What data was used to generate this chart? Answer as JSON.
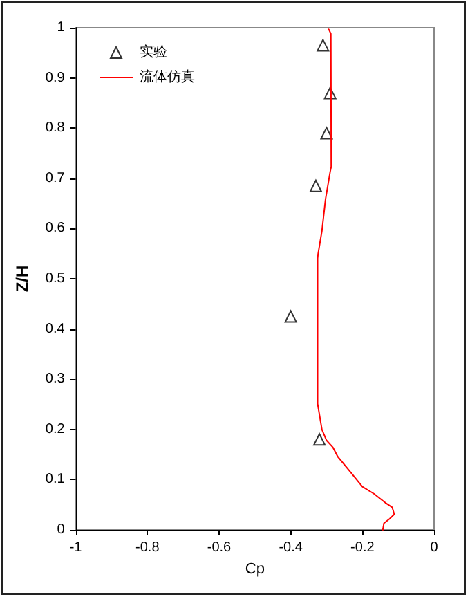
{
  "chart_data": {
    "type": "scatter",
    "xlabel": "Cp",
    "ylabel": "Z/H",
    "series": [
      {
        "name": "实验",
        "marker": "triangle",
        "color": "#000000",
        "x": [
          -0.31,
          -0.29,
          -0.3,
          -0.33,
          -0.4,
          -0.32
        ],
        "values": [
          0.965,
          0.87,
          0.79,
          0.685,
          0.425,
          0.18
        ]
      },
      {
        "name": "流体仿真",
        "type": "line",
        "marker": "none",
        "line_style": "solid",
        "color": "#ff0000",
        "x": [
          -0.294,
          -0.288,
          -0.287,
          -0.29,
          -0.303,
          -0.313,
          -0.324,
          -0.325,
          -0.325,
          -0.313,
          -0.3,
          -0.282,
          -0.269,
          -0.231,
          -0.2,
          -0.168,
          -0.136,
          -0.117,
          -0.111,
          -0.124,
          -0.14,
          -0.143
        ],
        "values": [
          0.997,
          0.988,
          0.723,
          0.713,
          0.658,
          0.595,
          0.548,
          0.54,
          0.251,
          0.2,
          0.178,
          0.164,
          0.146,
          0.113,
          0.086,
          0.072,
          0.054,
          0.045,
          0.031,
          0.022,
          0.013,
          0
        ]
      }
    ],
    "xlim": [
      -1,
      0
    ],
    "xticks": [
      -1,
      -0.8,
      -0.6,
      -0.4,
      -0.2,
      0
    ],
    "ylim": [
      0,
      1
    ],
    "yticks": [
      0,
      0.1,
      0.2,
      0.3,
      0.4,
      0.5,
      0.6,
      0.7,
      0.8,
      0.9,
      1
    ],
    "grid": false,
    "legend": "top left"
  }
}
